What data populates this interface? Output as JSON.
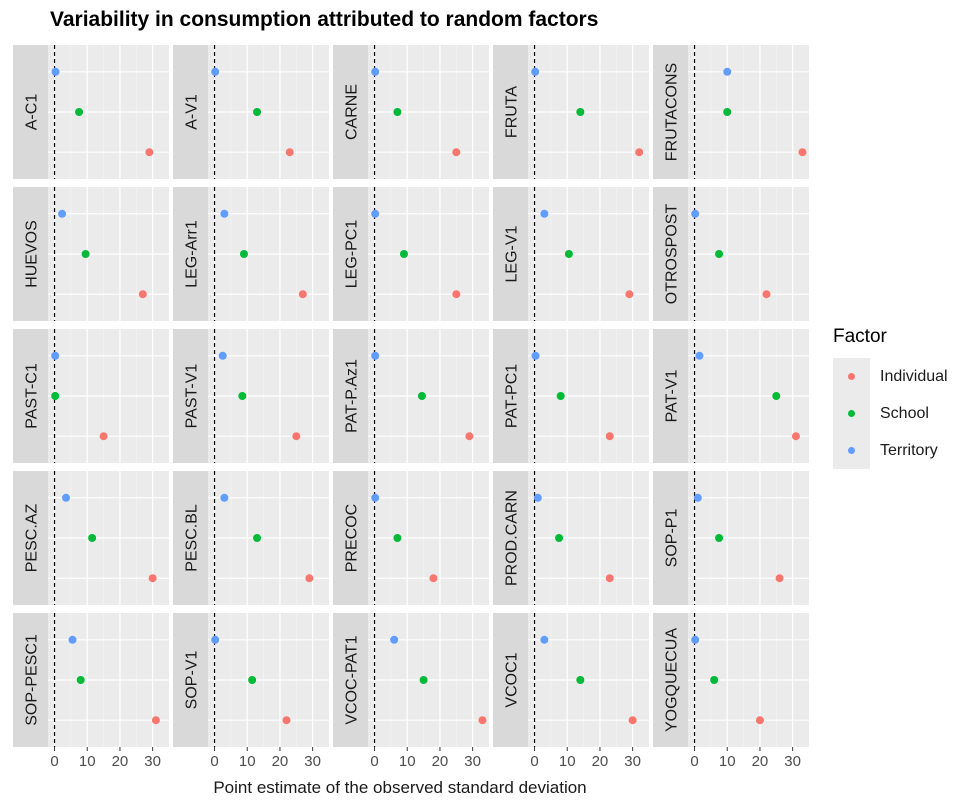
{
  "chart_data": {
    "type": "scatter",
    "title": "Variability in consumption attributed to random factors",
    "xlabel": "Point estimate of the observed standard deviation",
    "ylabel": "",
    "xlim": [
      -2,
      35
    ],
    "x_ticks": [
      "0",
      "10",
      "20",
      "30"
    ],
    "x_tick_values": [
      0,
      10,
      20,
      30
    ],
    "reference_line": {
      "x": 0,
      "style": "dashed"
    },
    "grid": true,
    "legend": {
      "title": "Factor",
      "placement": "right"
    },
    "series": [
      {
        "name": "Individual",
        "color": "#F8766D"
      },
      {
        "name": "School",
        "color": "#00BA38"
      },
      {
        "name": "Territory",
        "color": "#619CFF"
      }
    ],
    "panels": [
      {
        "label": "A-C1",
        "values": {
          "Individual": 29,
          "School": 7.5,
          "Territory": 0.3
        }
      },
      {
        "label": "A-V1",
        "values": {
          "Individual": 23,
          "School": 13,
          "Territory": 0.2
        }
      },
      {
        "label": "CARNE",
        "values": {
          "Individual": 25,
          "School": 7,
          "Territory": 0.2
        }
      },
      {
        "label": "FRUTA",
        "values": {
          "Individual": 32,
          "School": 14,
          "Territory": 0.2
        }
      },
      {
        "label": "FRUTACONS",
        "values": {
          "Individual": 33,
          "School": 10,
          "Territory": 10
        }
      },
      {
        "label": "HUEVOS",
        "values": {
          "Individual": 27,
          "School": 9.5,
          "Territory": 2.3
        }
      },
      {
        "label": "LEG-Arr1",
        "values": {
          "Individual": 27,
          "School": 9,
          "Territory": 3
        }
      },
      {
        "label": "LEG-PC1",
        "values": {
          "Individual": 25,
          "School": 9,
          "Territory": 0.2
        }
      },
      {
        "label": "LEG-V1",
        "values": {
          "Individual": 29,
          "School": 10.5,
          "Territory": 3
        }
      },
      {
        "label": "OTROSPOST",
        "values": {
          "Individual": 22,
          "School": 7.5,
          "Territory": 0.2
        }
      },
      {
        "label": "PAST-C1",
        "values": {
          "Individual": 15,
          "School": 0.2,
          "Territory": 0.2
        }
      },
      {
        "label": "PAST-V1",
        "values": {
          "Individual": 25,
          "School": 8.5,
          "Territory": 2.5
        }
      },
      {
        "label": "PAT-P.Az1",
        "values": {
          "Individual": 29,
          "School": 14.5,
          "Territory": 0.2
        }
      },
      {
        "label": "PAT-PC1",
        "values": {
          "Individual": 23,
          "School": 8,
          "Territory": 0.3
        }
      },
      {
        "label": "PAT-V1",
        "values": {
          "Individual": 31,
          "School": 25,
          "Territory": 1.5
        }
      },
      {
        "label": "PESC.AZ",
        "values": {
          "Individual": 30,
          "School": 11.5,
          "Territory": 3.5
        }
      },
      {
        "label": "PESC.BL",
        "values": {
          "Individual": 29,
          "School": 13,
          "Territory": 3
        }
      },
      {
        "label": "PRECOC",
        "values": {
          "Individual": 18,
          "School": 7,
          "Territory": 0.2
        }
      },
      {
        "label": "PROD.CARN",
        "values": {
          "Individual": 23,
          "School": 7.5,
          "Territory": 1
        }
      },
      {
        "label": "SOP-P1",
        "values": {
          "Individual": 26,
          "School": 7.5,
          "Territory": 1
        }
      },
      {
        "label": "SOP-PESC1",
        "values": {
          "Individual": 31,
          "School": 8,
          "Territory": 5.5
        }
      },
      {
        "label": "SOP-V1",
        "values": {
          "Individual": 22,
          "School": 11.5,
          "Territory": 0.2
        }
      },
      {
        "label": "VCOC-PAT1",
        "values": {
          "Individual": 33,
          "School": 15,
          "Territory": 6
        }
      },
      {
        "label": "VCOC1",
        "values": {
          "Individual": 30,
          "School": 14,
          "Territory": 3
        }
      },
      {
        "label": "YOGQUECUA",
        "values": {
          "Individual": 20,
          "School": 6,
          "Territory": 0.2
        }
      }
    ]
  }
}
